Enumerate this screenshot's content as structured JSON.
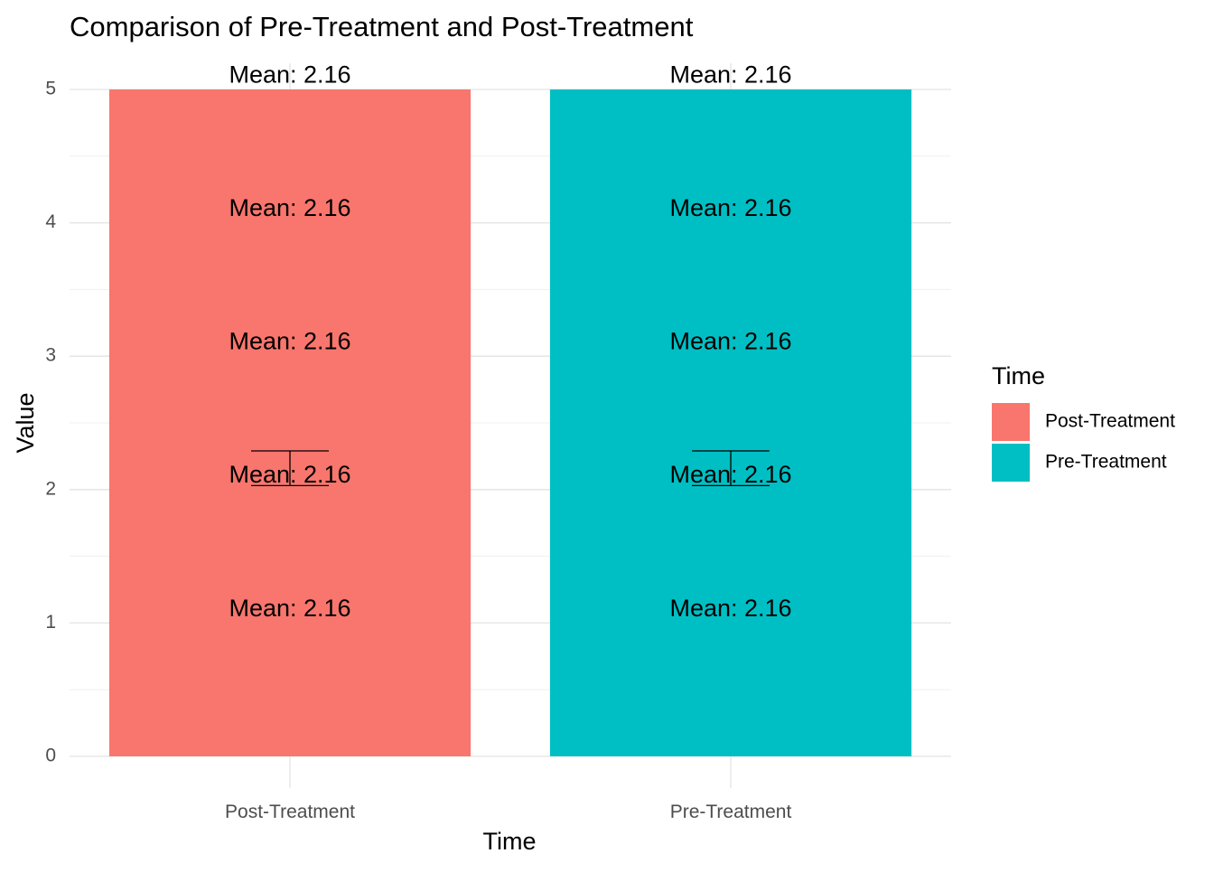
{
  "chart_data": {
    "type": "bar",
    "title": "Comparison of Pre-Treatment and Post-Treatment",
    "xlabel": "Time",
    "ylabel": "Value",
    "categories": [
      "Post-Treatment",
      "Pre-Treatment"
    ],
    "values": [
      5,
      5
    ],
    "colors": [
      "#F8766D",
      "#00BFC4"
    ],
    "ylim": [
      0,
      5
    ],
    "yticks": [
      0,
      1,
      2,
      3,
      4,
      5
    ],
    "grid": true,
    "error_bars": [
      {
        "category": "Post-Treatment",
        "center": 2.16,
        "low": 2.03,
        "high": 2.29
      },
      {
        "category": "Pre-Treatment",
        "center": 2.16,
        "low": 2.03,
        "high": 2.29
      }
    ],
    "annotations": {
      "text": "Mean: 2.16",
      "y_positions": [
        1.1,
        2.1,
        3.1,
        4.1,
        5.1
      ]
    },
    "legend": {
      "title": "Time",
      "position": "right",
      "entries": [
        "Post-Treatment",
        "Pre-Treatment"
      ]
    }
  }
}
